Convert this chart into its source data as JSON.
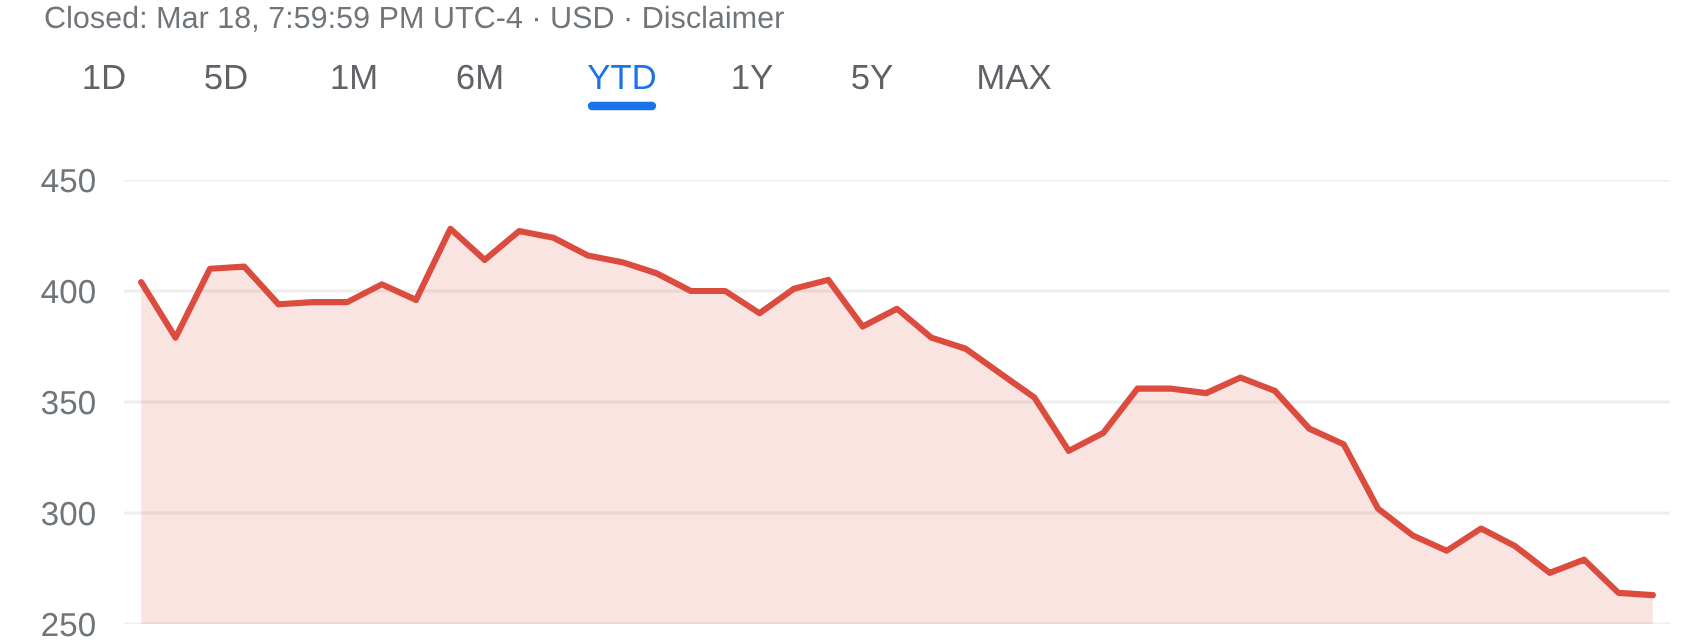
{
  "chart_data": {
    "type": "area",
    "annotations": [
      "Closed: Mar 18, 7:59:59 PM UTC-4 · USD · Disclaimer",
      "1D",
      "5D",
      "1M",
      "6M",
      "YTD",
      "1Y",
      "5Y",
      "MAX"
    ],
    "categories": [
      null,
      null,
      null,
      null,
      null,
      null,
      null,
      null,
      null,
      null,
      null,
      null,
      null,
      null,
      null,
      null,
      null,
      null,
      null,
      null,
      null,
      null,
      null,
      null,
      null,
      null,
      null,
      null,
      null,
      null,
      null,
      null,
      null,
      null,
      null,
      null,
      null,
      null,
      null,
      null,
      null,
      null,
      null,
      null,
      null
    ],
    "series": [
      {
        "color": "#dc4c3e",
        "values": [
          404,
          379,
          410,
          411,
          394,
          395,
          395,
          403,
          396,
          428,
          414,
          427,
          424,
          416,
          413,
          408,
          400,
          400,
          390,
          401,
          405,
          384,
          392,
          379,
          374,
          363,
          352,
          328,
          336,
          356,
          356,
          354,
          361,
          355,
          338,
          331,
          302,
          290,
          283,
          293,
          285,
          273,
          279,
          264,
          263
        ]
      }
    ],
    "ylim": [
      250,
      450
    ],
    "yticks": [
      250,
      300,
      350,
      400,
      450
    ],
    "grid": "y",
    "tick_labels": "y"
  }
}
